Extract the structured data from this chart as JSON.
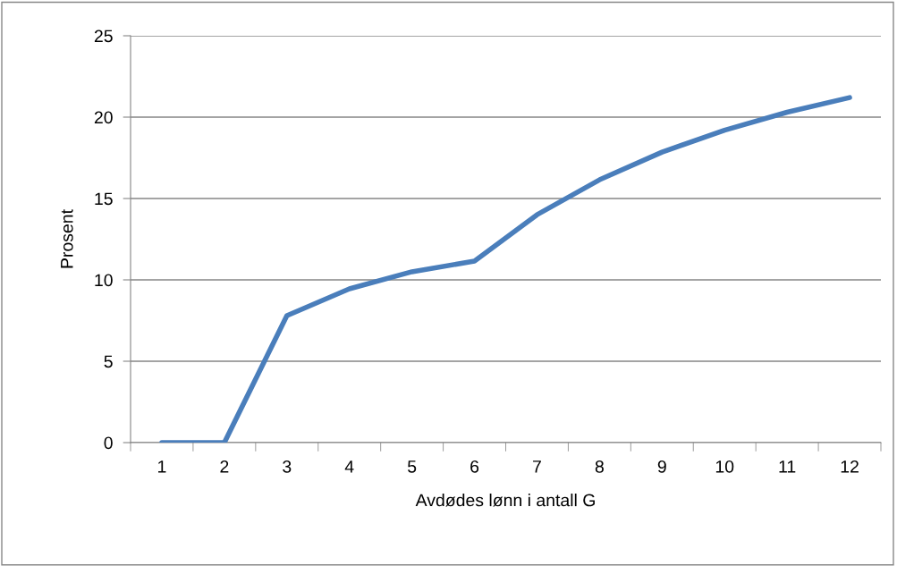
{
  "chart_data": {
    "type": "line",
    "xlabel": "Avdødes lønn i antall G",
    "ylabel": "Prosent",
    "categories": [
      "1",
      "2",
      "3",
      "4",
      "5",
      "6",
      "7",
      "8",
      "9",
      "10",
      "11",
      "12"
    ],
    "series": [
      {
        "color": "#4a7ebb",
        "values": [
          0,
          0,
          7.8,
          9.45,
          10.5,
          11.15,
          14.0,
          16.15,
          17.85,
          19.2,
          20.3,
          21.2
        ]
      }
    ],
    "ylim": [
      0,
      25
    ],
    "yticks": [
      0,
      5,
      10,
      15,
      20,
      25
    ],
    "grid": "y",
    "legend": false,
    "marker": "none",
    "line_style": "solid"
  }
}
